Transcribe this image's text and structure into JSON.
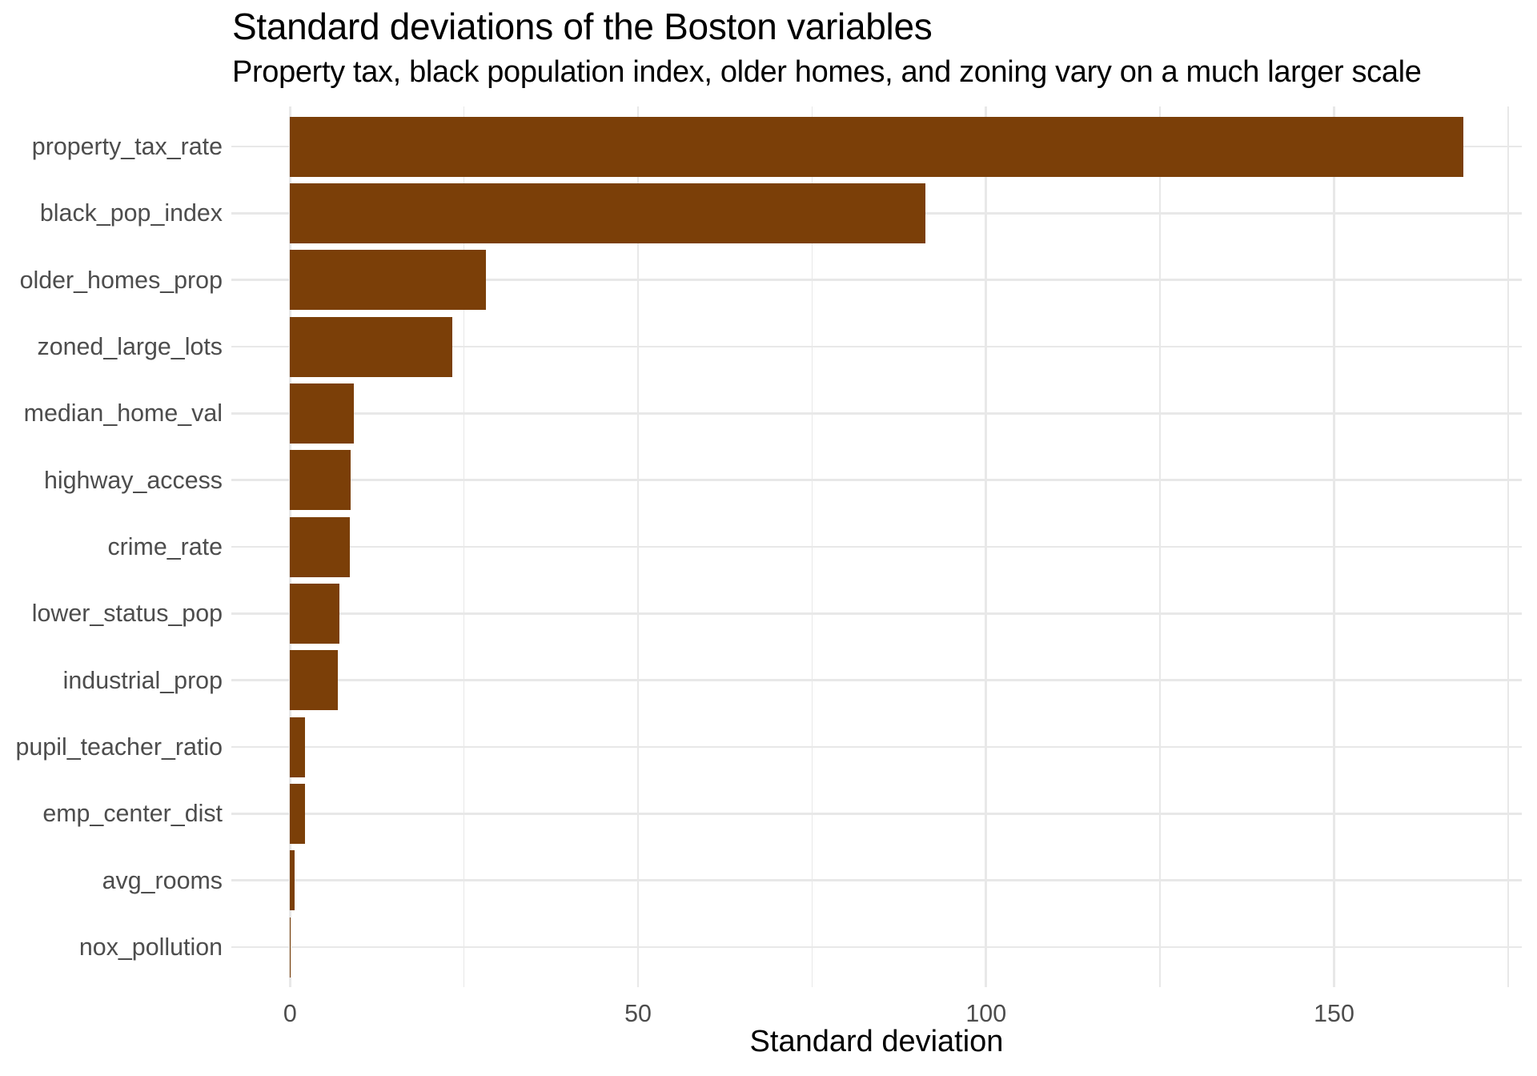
{
  "title": "Standard deviations of the Boston variables",
  "subtitle": "Property tax, black population index, older homes, and zoning vary on a much larger scale",
  "x_axis_title": "Standard deviation",
  "chart_data": {
    "type": "bar",
    "orientation": "horizontal",
    "title": "Standard deviations of the Boston variables",
    "subtitle": "Property tax, black population index, older homes, and zoning vary on a much larger scale",
    "xlabel": "Standard deviation",
    "ylabel": "",
    "categories": [
      "property_tax_rate",
      "black_pop_index",
      "older_homes_prop",
      "zoned_large_lots",
      "median_home_val",
      "highway_access",
      "crime_rate",
      "lower_status_pop",
      "industrial_prop",
      "pupil_teacher_ratio",
      "emp_center_dist",
      "avg_rooms",
      "nox_pollution"
    ],
    "values": [
      168.54,
      91.29,
      28.15,
      23.32,
      9.2,
      8.71,
      8.6,
      7.14,
      6.86,
      2.16,
      2.11,
      0.7,
      0.12
    ],
    "xlim": [
      -8.43,
      176.97
    ],
    "x_ticks_major": [
      0,
      50,
      100,
      150
    ],
    "x_ticks_minor": [
      25,
      75,
      125,
      175
    ],
    "grid": "on",
    "legend": "none",
    "bar_color": "#7B3F08",
    "grid_color": "#E8E8E8",
    "axis_text_color": "#4D4D4D",
    "title_color": "#000000"
  }
}
